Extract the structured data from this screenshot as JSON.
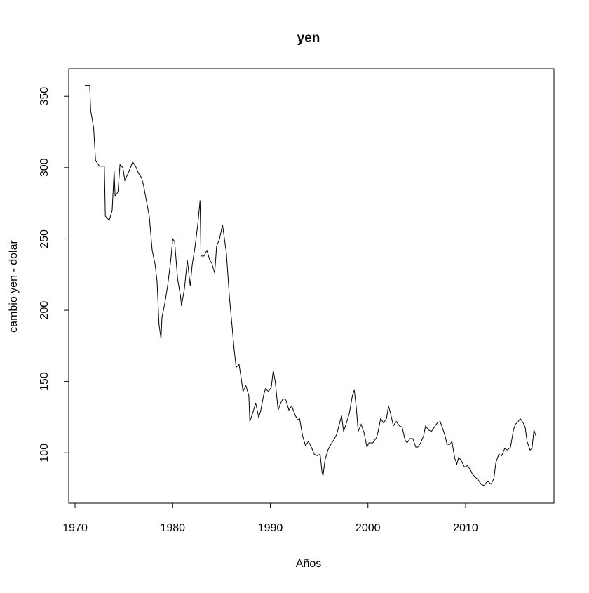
{
  "chart_data": {
    "type": "line",
    "title": "yen",
    "xlabel": "Años",
    "ylabel": "cambio yen - dolar",
    "color": "#000000",
    "x": [
      1971.0,
      1971.5,
      1971.6,
      1971.9,
      1972.1,
      1972.3,
      1972.5,
      1973.0,
      1973.1,
      1973.5,
      1973.8,
      1974.0,
      1974.1,
      1974.4,
      1974.6,
      1974.9,
      1975.1,
      1975.5,
      1975.9,
      1976.2,
      1976.5,
      1976.8,
      1977.0,
      1977.3,
      1977.6,
      1977.9,
      1978.2,
      1978.4,
      1978.6,
      1978.8,
      1978.9,
      1979.2,
      1979.5,
      1979.8,
      1980.0,
      1980.2,
      1980.5,
      1980.8,
      1980.9,
      1981.2,
      1981.5,
      1981.8,
      1982.0,
      1982.3,
      1982.6,
      1982.8,
      1982.9,
      1983.2,
      1983.5,
      1983.8,
      1984.0,
      1984.3,
      1984.5,
      1984.8,
      1985.1,
      1985.3,
      1985.5,
      1985.8,
      1986.0,
      1986.3,
      1986.5,
      1986.8,
      1987.0,
      1987.2,
      1987.5,
      1987.8,
      1987.9,
      1988.2,
      1988.5,
      1988.8,
      1989.0,
      1989.3,
      1989.5,
      1989.8,
      1990.1,
      1990.3,
      1990.5,
      1990.8,
      1991.0,
      1991.3,
      1991.6,
      1991.9,
      1992.2,
      1992.5,
      1992.8,
      1993.0,
      1993.3,
      1993.6,
      1993.9,
      1994.2,
      1994.5,
      1994.8,
      1995.1,
      1995.3,
      1995.4,
      1995.6,
      1995.9,
      1996.2,
      1996.5,
      1996.8,
      1997.1,
      1997.3,
      1997.5,
      1997.8,
      1998.1,
      1998.4,
      1998.6,
      1998.8,
      1999.0,
      1999.3,
      1999.6,
      1999.9,
      2000.1,
      2000.5,
      2000.9,
      2001.1,
      2001.3,
      2001.6,
      2001.9,
      2002.1,
      2002.3,
      2002.6,
      2002.9,
      2003.2,
      2003.5,
      2003.8,
      2004.0,
      2004.3,
      2004.6,
      2004.9,
      2005.1,
      2005.4,
      2005.7,
      2005.9,
      2006.2,
      2006.5,
      2006.8,
      2007.1,
      2007.4,
      2007.6,
      2007.9,
      2008.1,
      2008.4,
      2008.6,
      2008.9,
      2009.1,
      2009.3,
      2009.6,
      2009.9,
      2010.2,
      2010.5,
      2010.7,
      2011.0,
      2011.3,
      2011.6,
      2011.9,
      2012.1,
      2012.3,
      2012.6,
      2012.9,
      2013.1,
      2013.4,
      2013.7,
      2014.0,
      2014.3,
      2014.6,
      2014.9,
      2015.1,
      2015.4,
      2015.6,
      2015.9,
      2016.1,
      2016.3,
      2016.6,
      2016.8,
      2017.0,
      2017.2
    ],
    "values": [
      357.7,
      357.7,
      340,
      328,
      305,
      303,
      301,
      301,
      266,
      263,
      270,
      298,
      280,
      283,
      302,
      300,
      291,
      297,
      304,
      301,
      296,
      293,
      288,
      277,
      266,
      242,
      232,
      220,
      190,
      180,
      195,
      205,
      218,
      235,
      250,
      248,
      222,
      210,
      203,
      215,
      235,
      217,
      232,
      245,
      262,
      277,
      238,
      238,
      242,
      235,
      233,
      226,
      245,
      250,
      260,
      250,
      240,
      210,
      195,
      172,
      160,
      162,
      153,
      143,
      147,
      140,
      122,
      128,
      135,
      125,
      129,
      140,
      145,
      143,
      146,
      158,
      150,
      130,
      134,
      138,
      137,
      130,
      133,
      127,
      123,
      124,
      112,
      105,
      108,
      104,
      99,
      98,
      99,
      86,
      84,
      95,
      102,
      106,
      109,
      113,
      121,
      126,
      115,
      121,
      128,
      140,
      144,
      132,
      115,
      120,
      114,
      104,
      107,
      107,
      111,
      117,
      124,
      121,
      124,
      133,
      128,
      119,
      122,
      119,
      118,
      109,
      107,
      110,
      110,
      104,
      104,
      107,
      112,
      119,
      116,
      115,
      118,
      121,
      122,
      118,
      112,
      106,
      106,
      108,
      96,
      92,
      97,
      94,
      90,
      91,
      88,
      85,
      83,
      81,
      78,
      77,
      79,
      80,
      78,
      82,
      93,
      99,
      98,
      103,
      102,
      104,
      116,
      120,
      122,
      124,
      121,
      118,
      108,
      102,
      103,
      116,
      112
    ],
    "xlim": [
      1969.35,
      2019.05
    ],
    "ylim": [
      64.7,
      369.3
    ],
    "xticks": [
      1970,
      1980,
      1990,
      2000,
      2010
    ],
    "yticks": [
      100,
      150,
      200,
      250,
      300,
      350
    ]
  }
}
